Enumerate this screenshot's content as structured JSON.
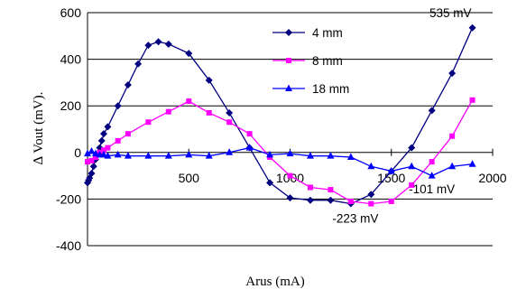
{
  "chart_data": {
    "type": "line",
    "xlabel": "Arus (mA)",
    "ylabel": "∆ Vout (mV).",
    "xlim": [
      0,
      2000
    ],
    "ylim": [
      -400,
      600
    ],
    "xticks": [
      "500",
      "1000",
      "1500",
      "2000"
    ],
    "yticks": [
      "600",
      "400",
      "200",
      "0",
      "-200",
      "-400"
    ],
    "xtick_values": [
      500,
      1000,
      1500,
      2000
    ],
    "ytick_values": [
      600,
      400,
      200,
      0,
      -200,
      -400
    ],
    "grid": "horizontal",
    "legend_position": "top-center",
    "series": [
      {
        "name": "4 mm",
        "color": "#000080",
        "marker": "diamond",
        "x": [
          0,
          5,
          10,
          20,
          30,
          40,
          50,
          60,
          70,
          80,
          100,
          150,
          200,
          250,
          300,
          350,
          400,
          500,
          600,
          700,
          800,
          900,
          1000,
          1100,
          1200,
          1300,
          1400,
          1500,
          1600,
          1700,
          1800,
          1900
        ],
        "y": [
          -130,
          -120,
          -110,
          -90,
          -60,
          -30,
          -10,
          20,
          50,
          80,
          110,
          200,
          290,
          380,
          460,
          475,
          465,
          425,
          310,
          170,
          20,
          -130,
          -195,
          -205,
          -205,
          -220,
          -180,
          -80,
          20,
          180,
          340,
          535
        ]
      },
      {
        "name": "8 mm",
        "color": "#FF00FF",
        "marker": "square",
        "x": [
          0,
          20,
          40,
          60,
          80,
          100,
          150,
          200,
          300,
          400,
          500,
          600,
          700,
          800,
          900,
          1000,
          1100,
          1200,
          1300,
          1400,
          1500,
          1600,
          1700,
          1800,
          1900
        ],
        "y": [
          -40,
          -35,
          -20,
          0,
          10,
          20,
          50,
          80,
          130,
          175,
          220,
          170,
          130,
          80,
          -20,
          -100,
          -150,
          -160,
          -210,
          -220,
          -210,
          -140,
          -40,
          70,
          225
        ]
      },
      {
        "name": "18 mm",
        "color": "#0000FF",
        "marker": "triangle",
        "x": [
          0,
          20,
          40,
          60,
          80,
          100,
          150,
          200,
          300,
          400,
          500,
          600,
          700,
          800,
          900,
          1000,
          1100,
          1200,
          1300,
          1400,
          1500,
          1600,
          1700,
          1800,
          1900
        ],
        "y": [
          -5,
          5,
          -5,
          -10,
          -10,
          -15,
          -10,
          -15,
          -15,
          -15,
          -10,
          -15,
          0,
          20,
          -10,
          -5,
          -15,
          -15,
          -20,
          -60,
          -80,
          -60,
          -100,
          -60,
          -50
        ]
      }
    ],
    "annotations": [
      {
        "text": "535 mV",
        "x": 1900,
        "y": 535
      },
      {
        "text": "-101 mV",
        "x": 1700,
        "y": -101
      },
      {
        "text": "-223 mV",
        "x": 1300,
        "y": -223
      }
    ]
  }
}
